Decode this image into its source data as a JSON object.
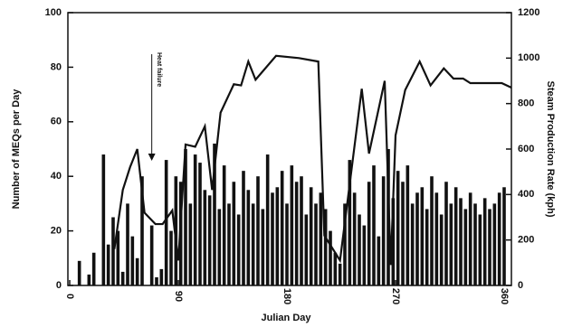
{
  "chart_data": {
    "type": "bar",
    "x_label": "Julian Day",
    "y_label": "Number of MEQs per Day",
    "y2_label": "Steam Production Rate (kph)",
    "annotation": "Heat failure",
    "annotation_x": 68,
    "xlim": [
      0,
      360
    ],
    "xticks": [
      0,
      90,
      180,
      270,
      360
    ],
    "ylim": [
      0,
      100
    ],
    "yticks": [
      0,
      20,
      40,
      60,
      80,
      100
    ],
    "y2lim": [
      0,
      1200
    ],
    "y2ticks": [
      0,
      200,
      400,
      600,
      800,
      1000,
      1200
    ],
    "series": [
      {
        "name": "MEQs per day",
        "color": "#111111",
        "x": [
          4,
          8,
          12,
          16,
          20,
          24,
          28,
          32,
          36,
          40,
          44,
          48,
          52,
          56,
          60,
          64,
          68,
          72,
          76,
          80,
          84,
          88,
          92,
          96,
          100,
          104,
          108,
          112,
          116,
          120,
          124,
          128,
          132,
          136,
          140,
          144,
          148,
          152,
          156,
          160,
          164,
          168,
          172,
          176,
          180,
          184,
          188,
          192,
          196,
          200,
          204,
          208,
          212,
          216,
          220,
          224,
          228,
          232,
          236,
          240,
          244,
          248,
          252,
          256,
          260,
          264,
          268,
          272,
          276,
          280,
          284,
          288,
          292,
          296,
          300,
          304,
          308,
          312,
          316,
          320,
          324,
          328,
          332,
          336,
          340,
          344,
          348,
          352,
          356,
          360
        ],
        "values": [
          0,
          9,
          0,
          4,
          12,
          0,
          48,
          15,
          25,
          20,
          5,
          30,
          18,
          10,
          40,
          0,
          22,
          3,
          6,
          46,
          20,
          40,
          38,
          50,
          30,
          48,
          45,
          35,
          33,
          52,
          28,
          44,
          30,
          38,
          26,
          42,
          35,
          30,
          40,
          28,
          48,
          34,
          36,
          42,
          30,
          44,
          38,
          40,
          26,
          36,
          30,
          34,
          28,
          20,
          12,
          8,
          30,
          46,
          34,
          26,
          22,
          38,
          44,
          18,
          40,
          50,
          32,
          42,
          38,
          44,
          30,
          34,
          36,
          28,
          40,
          34,
          26,
          38,
          30,
          36,
          32,
          28,
          34,
          30,
          26,
          32,
          28,
          30,
          34,
          36
        ]
      },
      {
        "name": "Steam production rate",
        "color": "#111111",
        "axis": "y2",
        "x": [
          37,
          44,
          50,
          56,
          62,
          71,
          77,
          85,
          90,
          96,
          104,
          112,
          118,
          125,
          136,
          142,
          148,
          154,
          171,
          190,
          206,
          211,
          224,
          242,
          248,
          261,
          266,
          270,
          278,
          290,
          299,
          310,
          318,
          326,
          332,
          358,
          366
        ],
        "values": [
          160,
          420,
          520,
          600,
          320,
          270,
          270,
          330,
          110,
          620,
          610,
          700,
          420,
          760,
          885,
          880,
          985,
          905,
          1010,
          1000,
          985,
          220,
          110,
          865,
          580,
          900,
          90,
          660,
          860,
          985,
          880,
          955,
          910,
          910,
          890,
          890,
          870
        ]
      }
    ]
  }
}
